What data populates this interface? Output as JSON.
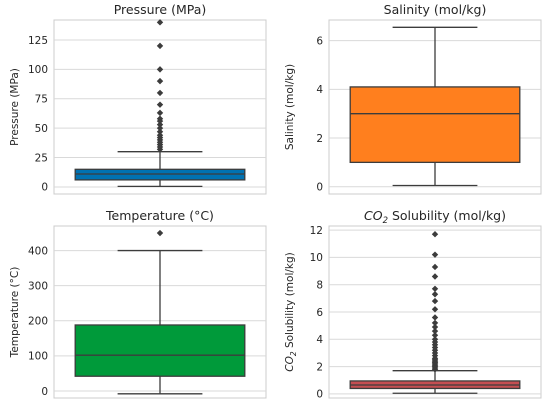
{
  "chart_data": [
    {
      "type": "box",
      "title": "Pressure (MPa)",
      "ylabel": "Pressure (MPa)",
      "ylim": [
        -6,
        142
      ],
      "yticks": [
        0,
        25,
        50,
        75,
        100,
        125
      ],
      "box_color": "#0072b2",
      "q1": 6,
      "median": 11,
      "q3": 15,
      "whisker_low": 0.5,
      "whisker_high": 30,
      "outliers": [
        32,
        34,
        36,
        38,
        40,
        42,
        44,
        47,
        50,
        53,
        56,
        58,
        63,
        70,
        80,
        90,
        100,
        120,
        140
      ]
    },
    {
      "type": "box",
      "title": "Salinity (mol/kg)",
      "ylabel": "Salinity (mol/kg)",
      "ylim": [
        -0.3,
        6.85
      ],
      "yticks": [
        0,
        2,
        4,
        6
      ],
      "box_color": "#ff7f1e",
      "q1": 1.0,
      "median": 3.0,
      "q3": 4.1,
      "whisker_low": 0.05,
      "whisker_high": 6.55,
      "outliers": []
    },
    {
      "type": "box",
      "title": "Temperature (°C)",
      "ylabel": "Temperature (°C)",
      "ylim": [
        -20,
        470
      ],
      "yticks": [
        0,
        100,
        200,
        300,
        400
      ],
      "box_color": "#009a3a",
      "q1": 42,
      "median": 102,
      "q3": 188,
      "whisker_low": -8,
      "whisker_high": 400,
      "outliers": [
        450
      ]
    },
    {
      "type": "box",
      "title_main": "CO",
      "title_sub": "2",
      "title_rest": " Solubility (mol/kg)",
      "ylabel_main": "CO",
      "ylabel_sub": "2",
      "ylabel_rest": " Solubility (mol/kg)",
      "ylim": [
        -0.3,
        12.3
      ],
      "yticks": [
        0,
        2,
        4,
        6,
        8,
        10,
        12
      ],
      "box_color": "#c44e52",
      "q1": 0.4,
      "median": 0.65,
      "q3": 0.95,
      "whisker_low": 0.05,
      "whisker_high": 1.7,
      "outliers": [
        1.8,
        1.9,
        2.0,
        2.1,
        2.2,
        2.3,
        2.4,
        2.5,
        2.6,
        2.8,
        3.0,
        3.2,
        3.4,
        3.6,
        3.8,
        4.0,
        4.3,
        4.6,
        4.9,
        5.2,
        5.6,
        6.2,
        6.8,
        7.3,
        7.7,
        8.6,
        9.3,
        10.2,
        11.7
      ]
    }
  ]
}
